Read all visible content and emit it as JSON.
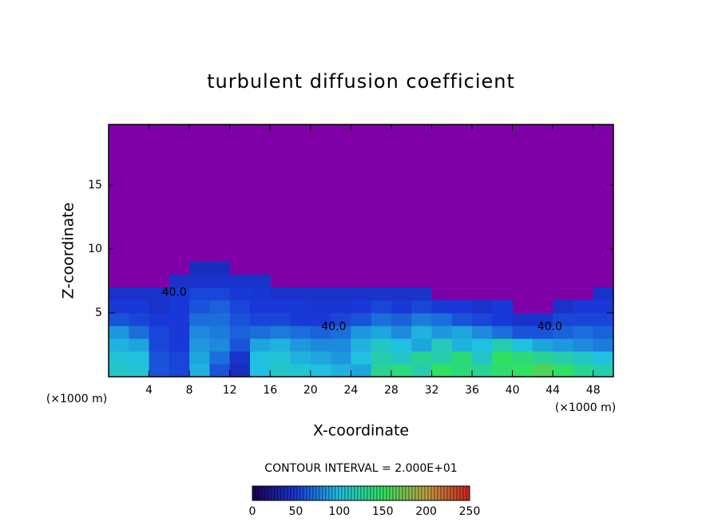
{
  "chart_data": {
    "type": "heatmap",
    "title": "turbulent diffusion coefficient",
    "x_label": "X-coordinate",
    "y_label": "Z-coordinate",
    "x_unit": "(×1000 m)",
    "x_unit_right": "(×1000 m)",
    "contour_interval": "CONTOUR INTERVAL = 2.000E+01",
    "xlim": [
      0,
      50
    ],
    "ylim": [
      0,
      19.75
    ],
    "xticks": [
      4,
      8,
      12,
      16,
      20,
      24,
      28,
      32,
      36,
      40,
      44,
      48
    ],
    "yticks": [
      5,
      10,
      15
    ],
    "background_color": "#8000a8",
    "x": [
      1,
      3,
      5,
      7,
      9,
      11,
      13,
      15,
      17,
      19,
      21,
      23,
      25,
      27,
      29,
      31,
      33,
      35,
      37,
      39,
      41,
      43,
      45,
      47,
      49
    ],
    "z": [
      0.5,
      1.5,
      2.5,
      3.5,
      4.5,
      5.5,
      6.5,
      7.5,
      8.5
    ],
    "values": [
      [
        110,
        105,
        60,
        55,
        95,
        60,
        40,
        100,
        110,
        105,
        100,
        95,
        90,
        130,
        140,
        120,
        150,
        140,
        130,
        145,
        150,
        160,
        150,
        130,
        120
      ],
      [
        105,
        100,
        60,
        55,
        90,
        70,
        45,
        100,
        105,
        95,
        90,
        85,
        100,
        120,
        110,
        130,
        120,
        140,
        110,
        150,
        140,
        130,
        120,
        110,
        100
      ],
      [
        95,
        90,
        55,
        50,
        85,
        80,
        60,
        90,
        95,
        85,
        80,
        80,
        95,
        110,
        100,
        90,
        115,
        95,
        100,
        120,
        100,
        90,
        85,
        80,
        75
      ],
      [
        85,
        70,
        55,
        50,
        80,
        75,
        65,
        70,
        75,
        70,
        65,
        70,
        85,
        90,
        80,
        95,
        85,
        90,
        80,
        70,
        60,
        60,
        65,
        70,
        65
      ],
      [
        60,
        55,
        50,
        50,
        70,
        70,
        60,
        55,
        55,
        50,
        50,
        55,
        60,
        70,
        65,
        75,
        70,
        60,
        55,
        50,
        45,
        45,
        55,
        55,
        55
      ],
      [
        50,
        50,
        45,
        50,
        60,
        65,
        55,
        50,
        50,
        50,
        48,
        48,
        50,
        55,
        50,
        55,
        50,
        50,
        45,
        50,
        null,
        null,
        45,
        50,
        50
      ],
      [
        45,
        45,
        45,
        50,
        55,
        55,
        50,
        48,
        45,
        45,
        45,
        45,
        45,
        45,
        45,
        45,
        null,
        null,
        null,
        null,
        null,
        null,
        null,
        null,
        45
      ],
      [
        null,
        null,
        null,
        45,
        45,
        45,
        45,
        45,
        null,
        null,
        null,
        null,
        null,
        null,
        null,
        null,
        null,
        null,
        null,
        null,
        null,
        null,
        null,
        null,
        null
      ],
      [
        null,
        null,
        null,
        null,
        40,
        40,
        null,
        null,
        null,
        null,
        null,
        null,
        null,
        null,
        null,
        null,
        null,
        null,
        null,
        null,
        null,
        null,
        null,
        null,
        null
      ]
    ],
    "contour_labels": [
      {
        "text": "40.0",
        "x": 6.5,
        "z": 6.6
      },
      {
        "text": "40.0",
        "x": 22.3,
        "z": 3.9
      },
      {
        "text": "40.0",
        "x": 43.7,
        "z": 3.9
      }
    ],
    "colorbar": {
      "lim": [
        0,
        250
      ],
      "ticks": [
        0,
        50,
        100,
        150,
        200,
        250
      ],
      "colors": [
        "#1a0050",
        "#1838d8",
        "#20c0e0",
        "#30e060",
        "#c0a040",
        "#d02020"
      ]
    }
  }
}
